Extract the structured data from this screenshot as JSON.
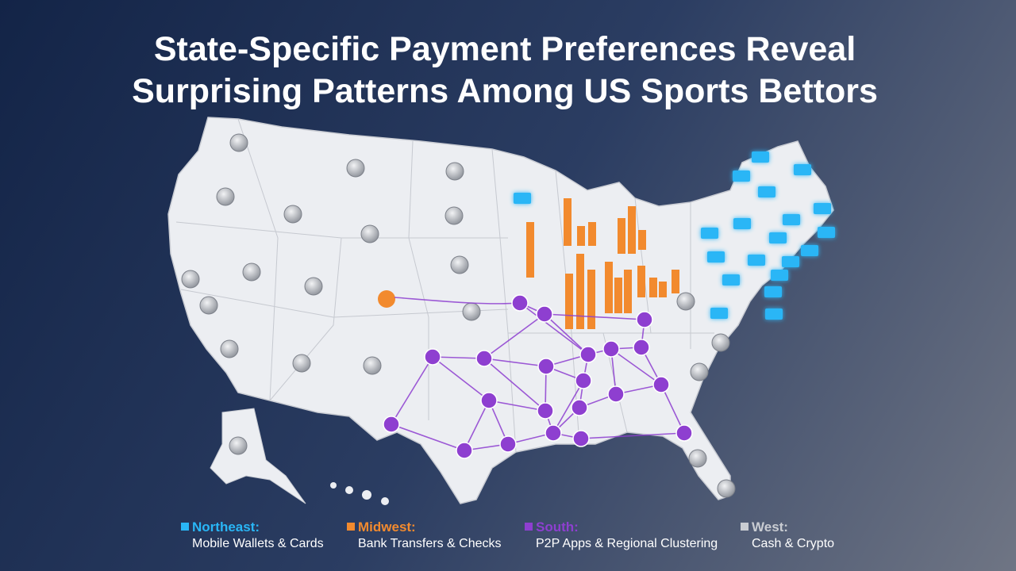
{
  "header": {
    "title_lines": [
      "State-Specific Payment Preferences Reveal",
      "Surprising Patterns Among US Sports Bettors"
    ]
  },
  "legend": [
    {
      "region": "Northeast:",
      "description": "Mobile Wallets & Cards",
      "color": "#29b6f6"
    },
    {
      "region": "Midwest:",
      "description": "Bank Transfers & Checks",
      "color": "#f28a2e"
    },
    {
      "region": "South:",
      "description": "P2P Apps & Regional Clustering",
      "color": "#8e3fd0"
    },
    {
      "region": "West:",
      "description": "Cash & Crypto",
      "color": "#c9ccd2"
    }
  ]
}
